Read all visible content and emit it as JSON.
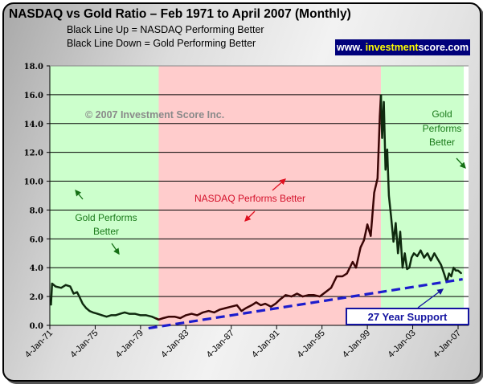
{
  "chart_data": {
    "type": "line",
    "title": "NASDAQ vs Gold Ratio – Feb 1971 to April 2007 (Monthly)",
    "subtitle": [
      "Black Line Up = NASDAQ Performing Better",
      "Black Line Down = Gold Performing Better"
    ],
    "xlabel": "",
    "ylabel": "",
    "ylim": [
      0,
      18
    ],
    "xlim": [
      1971.0,
      2007.6
    ],
    "yticks": [
      "0.0",
      "2.0",
      "4.0",
      "6.0",
      "8.0",
      "10.0",
      "12.0",
      "14.0",
      "16.0",
      "18.0"
    ],
    "xticks": [
      {
        "label": "4-Jan-71",
        "year": 1971.0
      },
      {
        "label": "4-Jan-75",
        "year": 1975.0
      },
      {
        "label": "4-Jan-79",
        "year": 1979.0
      },
      {
        "label": "4-Jan-83",
        "year": 1983.0
      },
      {
        "label": "4-Jan-87",
        "year": 1987.0
      },
      {
        "label": "4-Jan-91",
        "year": 1991.0
      },
      {
        "label": "4-Jan-95",
        "year": 1995.0
      },
      {
        "label": "4-Jan-99",
        "year": 1999.0
      },
      {
        "label": "4-Jan-03",
        "year": 2003.0
      },
      {
        "label": "4-Jan-07",
        "year": 2007.0
      }
    ],
    "grid": true,
    "regions": [
      {
        "label": "Gold Performs Better",
        "from": 1971.0,
        "to": 1980.6,
        "color": "#ccffcc"
      },
      {
        "label": "NASDAQ Performs Better",
        "from": 1980.6,
        "to": 2000.2,
        "color": "#ffcccc"
      },
      {
        "label": "Gold Performs Better",
        "from": 2000.2,
        "to": 2007.5,
        "color": "#ccffcc"
      }
    ],
    "series": [
      {
        "name": "NASDAQ/Gold Ratio",
        "color_gold_era": "#0f2a0f",
        "color_nasdaq_era": "#3a0505",
        "x": [
          1971.1,
          1971.2,
          1971.5,
          1972.0,
          1972.4,
          1972.8,
          1973.1,
          1973.4,
          1973.6,
          1973.9,
          1974.2,
          1974.5,
          1974.8,
          1975.2,
          1975.6,
          1976.0,
          1976.4,
          1976.8,
          1977.2,
          1977.6,
          1978.0,
          1978.5,
          1979.0,
          1979.5,
          1980.0,
          1980.3,
          1980.6,
          1981.0,
          1981.5,
          1982.0,
          1982.5,
          1983.0,
          1983.5,
          1984.0,
          1984.5,
          1985.0,
          1985.5,
          1986.0,
          1986.5,
          1987.0,
          1987.5,
          1987.9,
          1988.3,
          1988.8,
          1989.2,
          1989.6,
          1990.0,
          1990.5,
          1990.9,
          1991.3,
          1991.8,
          1992.3,
          1992.8,
          1993.3,
          1993.8,
          1994.3,
          1994.8,
          1995.3,
          1995.8,
          1996.3,
          1996.8,
          1997.2,
          1997.7,
          1998.0,
          1998.4,
          1998.7,
          1999.0,
          1999.3,
          1999.6,
          1999.9,
          2000.1,
          2000.2,
          2000.3,
          2000.45,
          2000.6,
          2000.75,
          2000.9,
          2001.1,
          2001.3,
          2001.5,
          2001.7,
          2001.9,
          2002.1,
          2002.3,
          2002.5,
          2002.7,
          2002.9,
          2003.1,
          2003.4,
          2003.7,
          2004.0,
          2004.3,
          2004.6,
          2004.9,
          2005.2,
          2005.5,
          2005.8,
          2006.0,
          2006.2,
          2006.4,
          2006.6,
          2006.8,
          2007.0,
          2007.3
        ],
        "y": [
          1.4,
          2.9,
          2.7,
          2.6,
          2.8,
          2.7,
          2.2,
          2.3,
          2.0,
          1.5,
          1.2,
          1.0,
          0.9,
          0.8,
          0.7,
          0.6,
          0.7,
          0.7,
          0.8,
          0.9,
          0.8,
          0.8,
          0.7,
          0.7,
          0.6,
          0.5,
          0.4,
          0.5,
          0.6,
          0.6,
          0.5,
          0.7,
          0.8,
          0.7,
          0.9,
          1.0,
          0.9,
          1.1,
          1.2,
          1.3,
          1.4,
          1.0,
          1.2,
          1.4,
          1.6,
          1.4,
          1.5,
          1.3,
          1.5,
          1.8,
          2.1,
          2.0,
          2.2,
          2.0,
          2.1,
          2.1,
          2.0,
          2.3,
          2.6,
          3.4,
          3.4,
          3.6,
          4.4,
          4.0,
          5.4,
          5.9,
          7.0,
          6.2,
          9.2,
          10.2,
          14.5,
          16.0,
          13.0,
          15.5,
          10.8,
          12.2,
          9.0,
          7.5,
          5.8,
          7.1,
          5.0,
          6.5,
          4.0,
          5.0,
          3.9,
          4.0,
          4.7,
          5.0,
          4.8,
          5.2,
          4.7,
          5.0,
          4.5,
          5.0,
          4.6,
          4.2,
          3.5,
          3.0,
          3.6,
          3.4,
          4.0,
          3.8,
          3.8,
          3.6
        ]
      }
    ],
    "trendline": {
      "name": "27 Year Support",
      "style": "dashed",
      "color": "#1c1ccc",
      "from": {
        "x": 1979.7,
        "y": -0.2
      },
      "to": {
        "x": 2007.4,
        "y": 3.2
      }
    },
    "annotations": [
      {
        "text": "© 2007 Investment Score Inc.",
        "kind": "watermark"
      },
      {
        "text": "Gold Performs Better",
        "kind": "region-label",
        "color": "#1a7a1a"
      },
      {
        "text": "NASDAQ Performs Better",
        "kind": "region-label",
        "color": "#d4102a"
      },
      {
        "text": "Gold Performs Better",
        "kind": "region-label",
        "color": "#1a7a1a"
      },
      {
        "text": "27 Year Support",
        "kind": "callout",
        "color": "#1414a0"
      }
    ],
    "brand": {
      "prefix": "www. ",
      "highlight": "investment",
      "suffix": "score.com"
    }
  }
}
